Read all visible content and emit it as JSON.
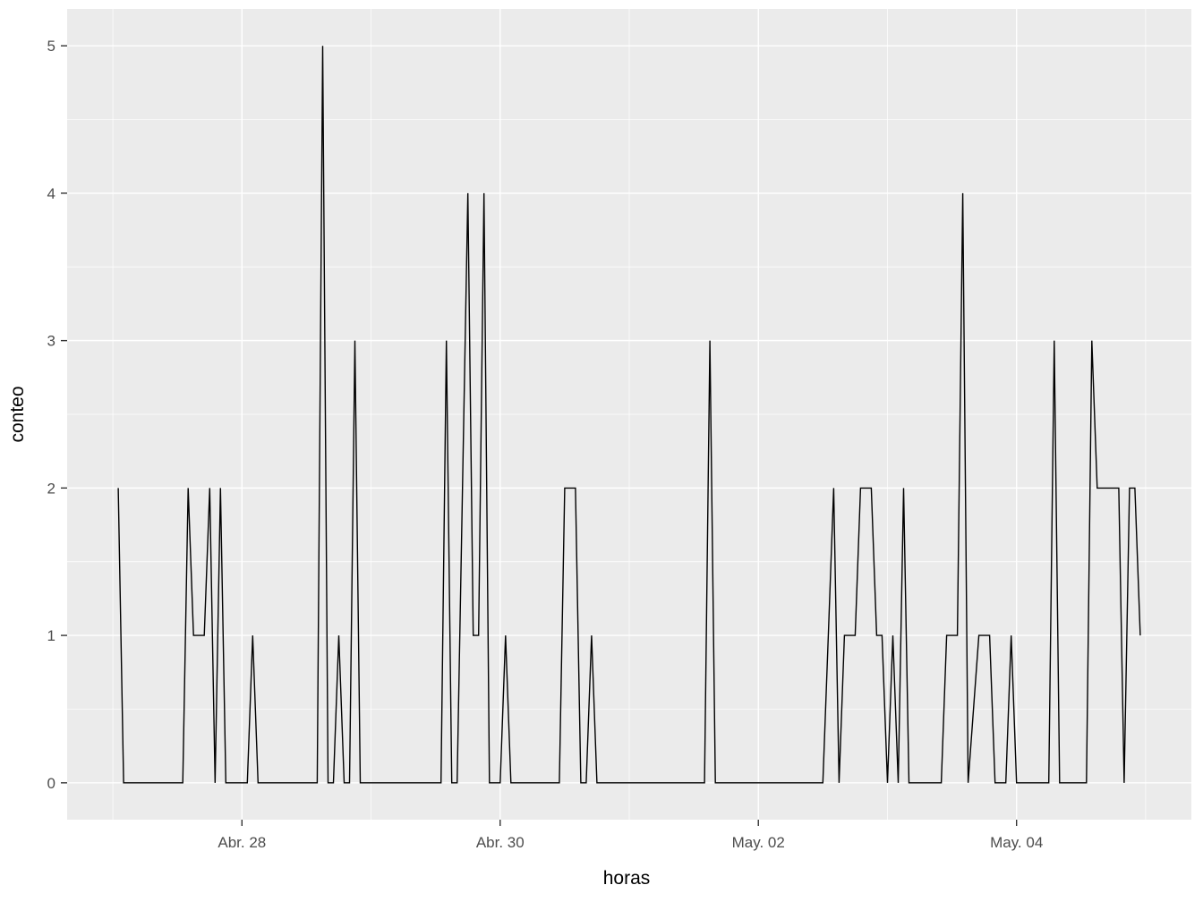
{
  "figure": {
    "background": "#FFFFFF"
  },
  "chart_data": {
    "type": "line",
    "title": "",
    "xlabel": "horas",
    "ylabel": "conteo",
    "legend": "none",
    "grid": "on",
    "panel_bg": "#EBEBEB",
    "grid_color": "#FFFFFF",
    "line_color": "#000000",
    "tick_mark_color": "#333333",
    "axis_text_color": "#4D4D4D",
    "axis_title_color": "#000000",
    "ylim": [
      -0.25,
      5.25
    ],
    "xlim_hours": [
      -8.5,
      200.5
    ],
    "y_ticks": [
      {
        "value": 0,
        "label": "0"
      },
      {
        "value": 1,
        "label": "1"
      },
      {
        "value": 2,
        "label": "2"
      },
      {
        "value": 3,
        "label": "3"
      },
      {
        "value": 4,
        "label": "4"
      },
      {
        "value": 5,
        "label": "5"
      }
    ],
    "x_ticks": [
      {
        "hour": 24,
        "label": "Abr. 28"
      },
      {
        "hour": 72,
        "label": "Abr. 30"
      },
      {
        "hour": 120,
        "label": "May. 02"
      },
      {
        "hour": 168,
        "label": "May. 04"
      }
    ],
    "x_minor_hours": [
      0,
      48,
      96,
      144,
      192
    ],
    "y_minor": [
      0.5,
      1.5,
      2.5,
      3.5,
      4.5
    ],
    "x_unit_note": "hours; hour 24 = Abr. 28 00:00, each day = 24 hours",
    "series": [
      {
        "name": "conteo",
        "points": [
          [
            1,
            2
          ],
          [
            2,
            0
          ],
          [
            13,
            0
          ],
          [
            14,
            2
          ],
          [
            15,
            1
          ],
          [
            17,
            1
          ],
          [
            18,
            2
          ],
          [
            19,
            0
          ],
          [
            20,
            2
          ],
          [
            21,
            0
          ],
          [
            25,
            0
          ],
          [
            26,
            1
          ],
          [
            27,
            0
          ],
          [
            38,
            0
          ],
          [
            39,
            5
          ],
          [
            40,
            0
          ],
          [
            41,
            0
          ],
          [
            42,
            1
          ],
          [
            43,
            0
          ],
          [
            44,
            0
          ],
          [
            45,
            3
          ],
          [
            46,
            0
          ],
          [
            61,
            0
          ],
          [
            62,
            3
          ],
          [
            63,
            0
          ],
          [
            64,
            0
          ],
          [
            65,
            2
          ],
          [
            66,
            4
          ],
          [
            67,
            1
          ],
          [
            68,
            1
          ],
          [
            69,
            4
          ],
          [
            70,
            0
          ],
          [
            72,
            0
          ],
          [
            73,
            1
          ],
          [
            74,
            0
          ],
          [
            83,
            0
          ],
          [
            84,
            2
          ],
          [
            86,
            2
          ],
          [
            87,
            0
          ],
          [
            88,
            0
          ],
          [
            89,
            1
          ],
          [
            90,
            0
          ],
          [
            110,
            0
          ],
          [
            111,
            3
          ],
          [
            112,
            0
          ],
          [
            132,
            0
          ],
          [
            133,
            1
          ],
          [
            134,
            2
          ],
          [
            135,
            0
          ],
          [
            136,
            1
          ],
          [
            138,
            1
          ],
          [
            139,
            2
          ],
          [
            141,
            2
          ],
          [
            142,
            1
          ],
          [
            143,
            1
          ],
          [
            144,
            0
          ],
          [
            145,
            1
          ],
          [
            146,
            0
          ],
          [
            147,
            2
          ],
          [
            148,
            0
          ],
          [
            154,
            0
          ],
          [
            155,
            1
          ],
          [
            157,
            1
          ],
          [
            158,
            4
          ],
          [
            159,
            0
          ],
          [
            161,
            1
          ],
          [
            163,
            1
          ],
          [
            164,
            0
          ],
          [
            166,
            0
          ],
          [
            167,
            1
          ],
          [
            168,
            0
          ],
          [
            174,
            0
          ],
          [
            175,
            3
          ],
          [
            176,
            0
          ],
          [
            181,
            0
          ],
          [
            182,
            3
          ],
          [
            183,
            2
          ],
          [
            187,
            2
          ],
          [
            188,
            0
          ],
          [
            189,
            2
          ],
          [
            190,
            2
          ],
          [
            191,
            1
          ]
        ]
      }
    ]
  }
}
